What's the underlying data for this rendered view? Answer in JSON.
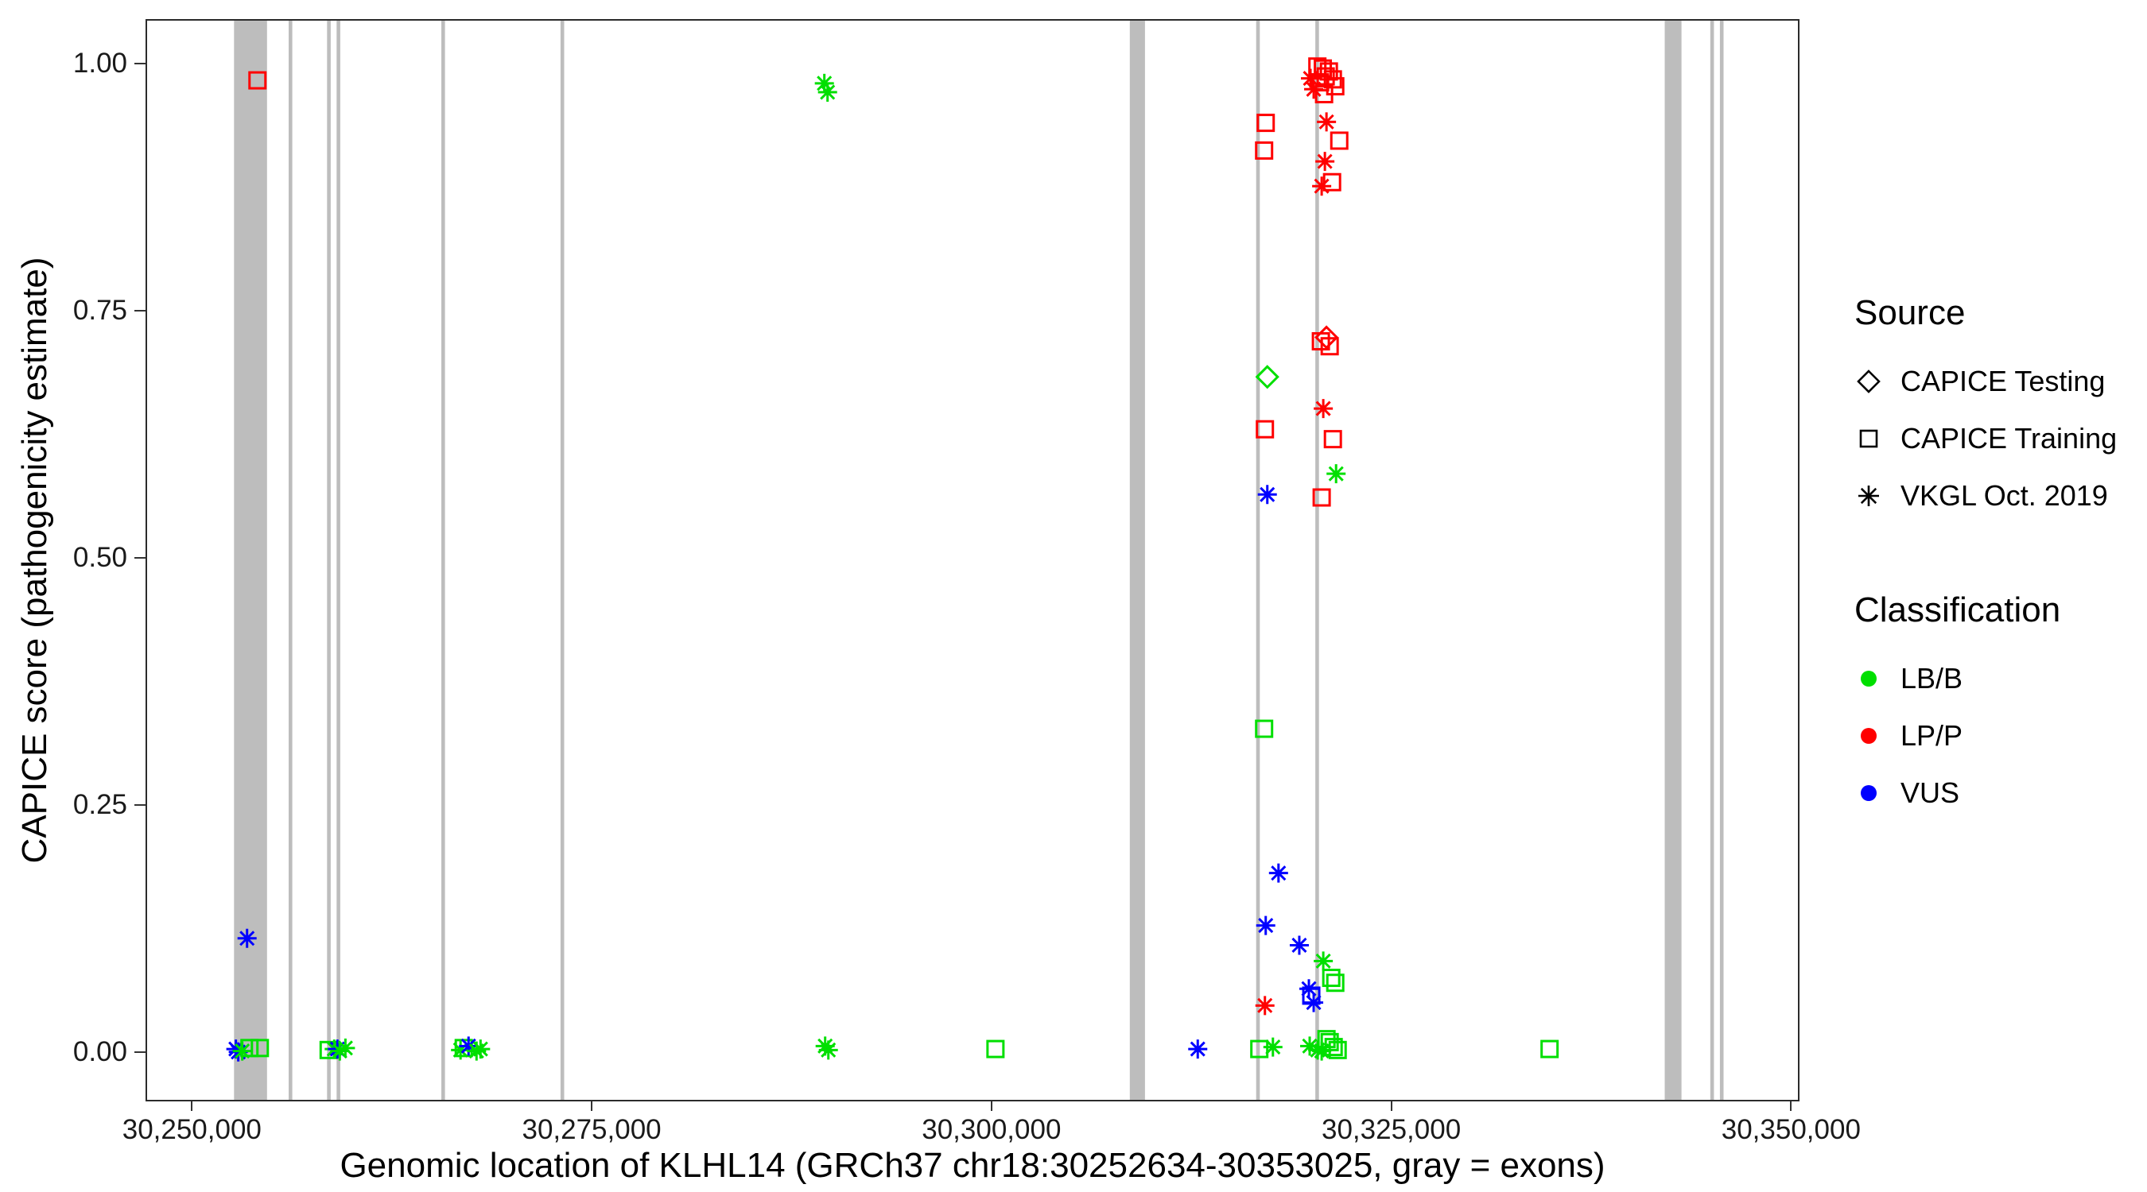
{
  "colors": {
    "LB/B": "#00DF00",
    "LP/P": "#FF0000",
    "VUS": "#0000FF",
    "exon": "#BDBDBD",
    "panel_border": "#2b2b2b"
  },
  "legend": {
    "source": {
      "title": "Source",
      "items": [
        {
          "label": "CAPICE Testing",
          "shape": "diamond"
        },
        {
          "label": "CAPICE Training",
          "shape": "square"
        },
        {
          "label": "VKGL Oct. 2019",
          "shape": "asterisk"
        }
      ]
    },
    "classification": {
      "title": "Classification",
      "items": [
        {
          "label": "LB/B",
          "color": "#00DF00"
        },
        {
          "label": "LP/P",
          "color": "#FF0000"
        },
        {
          "label": "VUS",
          "color": "#0000FF"
        }
      ]
    }
  },
  "chart_data": {
    "type": "scatter",
    "title": "",
    "xlabel": "Genomic location of KLHL14 (GRCh37 chr18:30252634-30353025, gray = exons)",
    "ylabel": "CAPICE score (pathogenicity estimate)",
    "xlim": [
      30247100,
      30350530
    ],
    "ylim": [
      -0.05,
      1.045
    ],
    "x_ticks": [
      {
        "value": 30250000,
        "label": "30,250,000"
      },
      {
        "value": 30275000,
        "label": "30,275,000"
      },
      {
        "value": 30300000,
        "label": "30,300,000"
      },
      {
        "value": 30325000,
        "label": "30,325,000"
      },
      {
        "value": 30350000,
        "label": "30,350,000"
      }
    ],
    "y_ticks": [
      {
        "value": 0.0,
        "label": "0.00"
      },
      {
        "value": 0.25,
        "label": "0.25"
      },
      {
        "value": 0.5,
        "label": "0.50"
      },
      {
        "value": 0.75,
        "label": "0.75"
      },
      {
        "value": 1.0,
        "label": "1.00"
      }
    ],
    "exons": [
      [
        30252634,
        30254700
      ],
      [
        30256050,
        30256280
      ],
      [
        30258450,
        30258680
      ],
      [
        30259050,
        30259280
      ],
      [
        30265600,
        30265830
      ],
      [
        30273050,
        30273280
      ],
      [
        30308650,
        30309600
      ],
      [
        30316550,
        30316780
      ],
      [
        30320250,
        30320480
      ],
      [
        30342100,
        30343150
      ],
      [
        30344950,
        30345180
      ],
      [
        30345550,
        30345780
      ]
    ],
    "points": [
      {
        "x": 30254100,
        "y": 0.983,
        "shape": "square",
        "cls": "LP/P"
      },
      {
        "x": 30252750,
        "y": 0.003,
        "shape": "asterisk",
        "cls": "VUS"
      },
      {
        "x": 30252900,
        "y": 0.0,
        "shape": "asterisk",
        "cls": "VUS"
      },
      {
        "x": 30253150,
        "y": 0.001,
        "shape": "asterisk",
        "cls": "LB/B"
      },
      {
        "x": 30253600,
        "y": 0.004,
        "shape": "square",
        "cls": "LB/B"
      },
      {
        "x": 30254250,
        "y": 0.004,
        "shape": "square",
        "cls": "LB/B"
      },
      {
        "x": 30253450,
        "y": 0.115,
        "shape": "asterisk",
        "cls": "VUS"
      },
      {
        "x": 30258550,
        "y": 0.002,
        "shape": "square",
        "cls": "LB/B"
      },
      {
        "x": 30258900,
        "y": 0.003,
        "shape": "asterisk",
        "cls": "LB/B"
      },
      {
        "x": 30259100,
        "y": 0.003,
        "shape": "asterisk",
        "cls": "VUS"
      },
      {
        "x": 30259250,
        "y": 0.001,
        "shape": "asterisk",
        "cls": "LB/B"
      },
      {
        "x": 30259600,
        "y": 0.004,
        "shape": "asterisk",
        "cls": "LB/B"
      },
      {
        "x": 30266800,
        "y": 0.002,
        "shape": "asterisk",
        "cls": "LB/B"
      },
      {
        "x": 30267000,
        "y": 0.004,
        "shape": "square",
        "cls": "LB/B"
      },
      {
        "x": 30267300,
        "y": 0.006,
        "shape": "asterisk",
        "cls": "VUS"
      },
      {
        "x": 30267800,
        "y": 0.001,
        "shape": "asterisk",
        "cls": "LB/B"
      },
      {
        "x": 30268050,
        "y": 0.003,
        "shape": "asterisk",
        "cls": "LB/B"
      },
      {
        "x": 30289550,
        "y": 0.98,
        "shape": "asterisk",
        "cls": "LB/B"
      },
      {
        "x": 30289750,
        "y": 0.971,
        "shape": "asterisk",
        "cls": "LB/B"
      },
      {
        "x": 30289600,
        "y": 0.006,
        "shape": "asterisk",
        "cls": "LB/B"
      },
      {
        "x": 30289800,
        "y": 0.002,
        "shape": "asterisk",
        "cls": "LB/B"
      },
      {
        "x": 30300250,
        "y": 0.003,
        "shape": "square",
        "cls": "LB/B"
      },
      {
        "x": 30312900,
        "y": 0.003,
        "shape": "asterisk",
        "cls": "VUS"
      },
      {
        "x": 30320380,
        "y": 0.997,
        "shape": "square",
        "cls": "LP/P"
      },
      {
        "x": 30320720,
        "y": 0.995,
        "shape": "square",
        "cls": "LP/P"
      },
      {
        "x": 30321100,
        "y": 0.992,
        "shape": "square",
        "cls": "LP/P"
      },
      {
        "x": 30320900,
        "y": 0.987,
        "shape": "square",
        "cls": "LP/P"
      },
      {
        "x": 30321350,
        "y": 0.984,
        "shape": "square",
        "cls": "LP/P"
      },
      {
        "x": 30320550,
        "y": 0.981,
        "shape": "square",
        "cls": "LP/P"
      },
      {
        "x": 30321500,
        "y": 0.977,
        "shape": "square",
        "cls": "LP/P"
      },
      {
        "x": 30319950,
        "y": 0.985,
        "shape": "asterisk",
        "cls": "LP/P"
      },
      {
        "x": 30320150,
        "y": 0.974,
        "shape": "asterisk",
        "cls": "LP/P"
      },
      {
        "x": 30320800,
        "y": 0.969,
        "shape": "square",
        "cls": "LP/P"
      },
      {
        "x": 30320950,
        "y": 0.941,
        "shape": "asterisk",
        "cls": "LP/P"
      },
      {
        "x": 30317150,
        "y": 0.94,
        "shape": "square",
        "cls": "LP/P"
      },
      {
        "x": 30321750,
        "y": 0.922,
        "shape": "square",
        "cls": "LP/P"
      },
      {
        "x": 30317050,
        "y": 0.912,
        "shape": "square",
        "cls": "LP/P"
      },
      {
        "x": 30320850,
        "y": 0.901,
        "shape": "asterisk",
        "cls": "LP/P"
      },
      {
        "x": 30321300,
        "y": 0.88,
        "shape": "square",
        "cls": "LP/P"
      },
      {
        "x": 30320650,
        "y": 0.876,
        "shape": "asterisk",
        "cls": "LP/P"
      },
      {
        "x": 30320950,
        "y": 0.723,
        "shape": "diamond",
        "cls": "LP/P"
      },
      {
        "x": 30320600,
        "y": 0.719,
        "shape": "square",
        "cls": "LP/P"
      },
      {
        "x": 30321150,
        "y": 0.714,
        "shape": "square",
        "cls": "LP/P"
      },
      {
        "x": 30317250,
        "y": 0.683,
        "shape": "diamond",
        "cls": "LB/B"
      },
      {
        "x": 30320750,
        "y": 0.651,
        "shape": "asterisk",
        "cls": "LP/P"
      },
      {
        "x": 30317100,
        "y": 0.63,
        "shape": "square",
        "cls": "LP/P"
      },
      {
        "x": 30321350,
        "y": 0.62,
        "shape": "square",
        "cls": "LP/P"
      },
      {
        "x": 30321550,
        "y": 0.585,
        "shape": "asterisk",
        "cls": "LB/B"
      },
      {
        "x": 30317250,
        "y": 0.564,
        "shape": "asterisk",
        "cls": "VUS"
      },
      {
        "x": 30320650,
        "y": 0.561,
        "shape": "square",
        "cls": "LP/P"
      },
      {
        "x": 30317050,
        "y": 0.327,
        "shape": "square",
        "cls": "LB/B"
      },
      {
        "x": 30317950,
        "y": 0.181,
        "shape": "asterisk",
        "cls": "VUS"
      },
      {
        "x": 30317150,
        "y": 0.128,
        "shape": "asterisk",
        "cls": "VUS"
      },
      {
        "x": 30319250,
        "y": 0.108,
        "shape": "asterisk",
        "cls": "VUS"
      },
      {
        "x": 30320750,
        "y": 0.092,
        "shape": "asterisk",
        "cls": "LB/B"
      },
      {
        "x": 30321250,
        "y": 0.075,
        "shape": "square",
        "cls": "LB/B"
      },
      {
        "x": 30321500,
        "y": 0.07,
        "shape": "square",
        "cls": "LB/B"
      },
      {
        "x": 30319850,
        "y": 0.064,
        "shape": "asterisk",
        "cls": "VUS"
      },
      {
        "x": 30320000,
        "y": 0.057,
        "shape": "square",
        "cls": "VUS"
      },
      {
        "x": 30320150,
        "y": 0.05,
        "shape": "asterisk",
        "cls": "VUS"
      },
      {
        "x": 30317100,
        "y": 0.047,
        "shape": "asterisk",
        "cls": "LP/P"
      },
      {
        "x": 30316750,
        "y": 0.003,
        "shape": "square",
        "cls": "LB/B"
      },
      {
        "x": 30317600,
        "y": 0.005,
        "shape": "asterisk",
        "cls": "LB/B"
      },
      {
        "x": 30319900,
        "y": 0.006,
        "shape": "asterisk",
        "cls": "LB/B"
      },
      {
        "x": 30320400,
        "y": 0.002,
        "shape": "asterisk",
        "cls": "LB/B"
      },
      {
        "x": 30320950,
        "y": 0.013,
        "shape": "square",
        "cls": "LB/B"
      },
      {
        "x": 30321150,
        "y": 0.01,
        "shape": "square",
        "cls": "LB/B"
      },
      {
        "x": 30321400,
        "y": 0.005,
        "shape": "square",
        "cls": "LB/B"
      },
      {
        "x": 30321650,
        "y": 0.002,
        "shape": "square",
        "cls": "LB/B"
      },
      {
        "x": 30320650,
        "y": 0.001,
        "shape": "asterisk",
        "cls": "LB/B"
      },
      {
        "x": 30334900,
        "y": 0.003,
        "shape": "square",
        "cls": "LB/B"
      }
    ]
  }
}
